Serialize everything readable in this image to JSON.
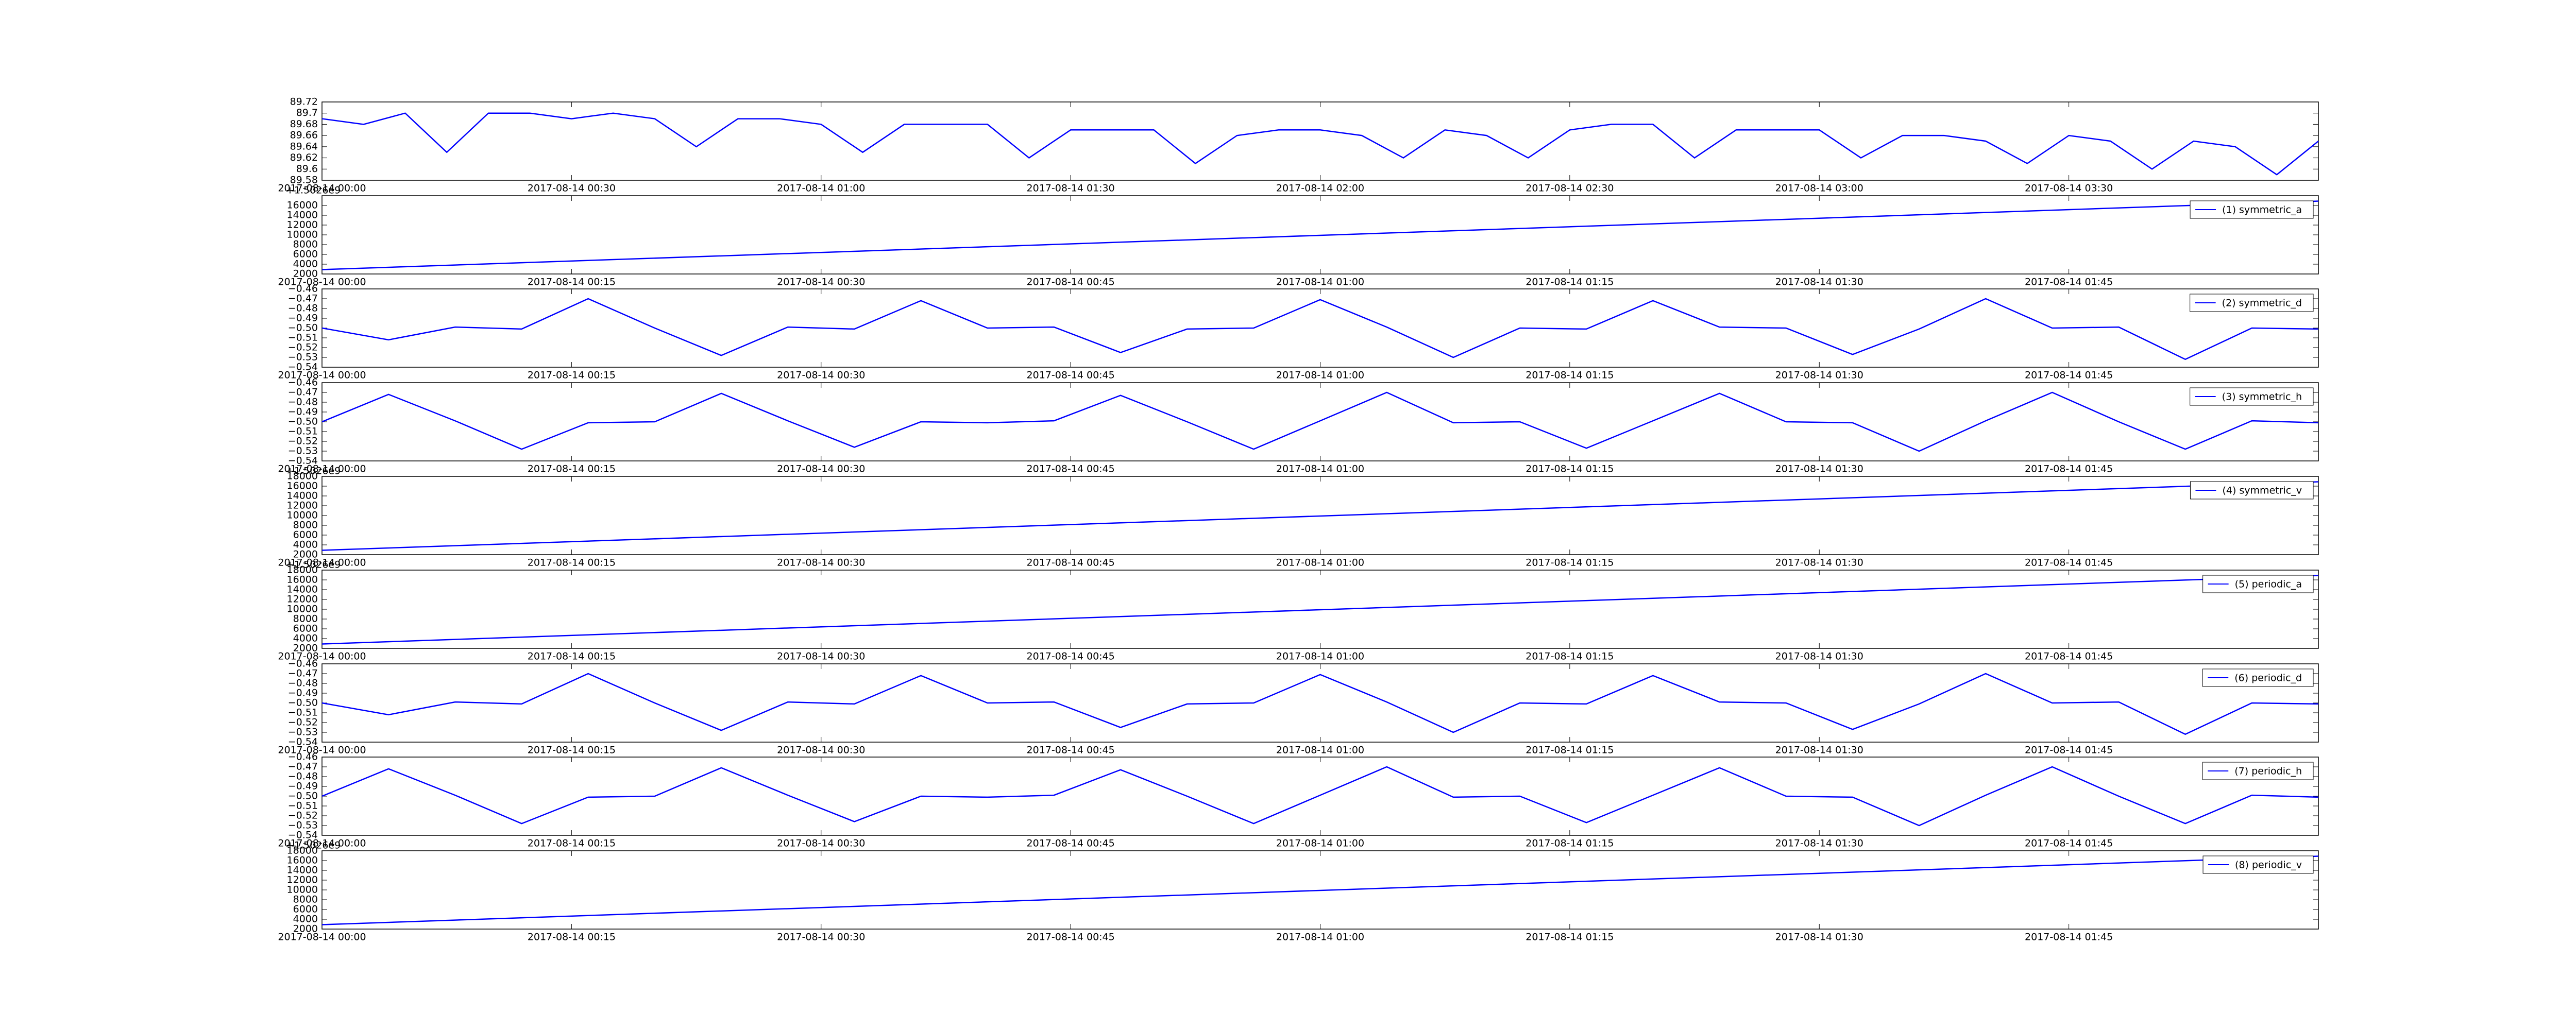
{
  "chart_data": [
    {
      "type": "line",
      "color": "#0000ff",
      "x": [
        "2017-08-14 00:00",
        "2017-08-14 00:05",
        "2017-08-14 00:10",
        "2017-08-14 00:15",
        "2017-08-14 00:20",
        "2017-08-14 00:25",
        "2017-08-14 00:30",
        "2017-08-14 00:35",
        "2017-08-14 00:40",
        "2017-08-14 00:45",
        "2017-08-14 00:50",
        "2017-08-14 00:55",
        "2017-08-14 01:00",
        "2017-08-14 01:05",
        "2017-08-14 01:10",
        "2017-08-14 01:15",
        "2017-08-14 01:20",
        "2017-08-14 01:25",
        "2017-08-14 01:30",
        "2017-08-14 01:35",
        "2017-08-14 01:40",
        "2017-08-14 01:45",
        "2017-08-14 01:50",
        "2017-08-14 01:55",
        "2017-08-14 02:00",
        "2017-08-14 02:05",
        "2017-08-14 02:10",
        "2017-08-14 02:15",
        "2017-08-14 02:20",
        "2017-08-14 02:25",
        "2017-08-14 02:30",
        "2017-08-14 02:35",
        "2017-08-14 02:40",
        "2017-08-14 02:45",
        "2017-08-14 02:50",
        "2017-08-14 02:55",
        "2017-08-14 03:00",
        "2017-08-14 03:05",
        "2017-08-14 03:10",
        "2017-08-14 03:15",
        "2017-08-14 03:20",
        "2017-08-14 03:25",
        "2017-08-14 03:30",
        "2017-08-14 03:35",
        "2017-08-14 03:40",
        "2017-08-14 03:45",
        "2017-08-14 03:50",
        "2017-08-14 03:55",
        "2017-08-14 04:00"
      ],
      "values": [
        89.69,
        89.68,
        89.7,
        89.63,
        89.7,
        89.7,
        89.69,
        89.7,
        89.69,
        89.64,
        89.69,
        89.69,
        89.68,
        89.63,
        89.68,
        89.68,
        89.68,
        89.62,
        89.67,
        89.67,
        89.67,
        89.61,
        89.66,
        89.67,
        89.67,
        89.66,
        89.62,
        89.67,
        89.66,
        89.62,
        89.67,
        89.68,
        89.68,
        89.62,
        89.67,
        89.67,
        89.67,
        89.62,
        89.66,
        89.66,
        89.65,
        89.61,
        89.66,
        89.65,
        89.6,
        89.65,
        89.64,
        89.59,
        89.65
      ],
      "xlim": [
        "2017-08-14 00:00",
        "2017-08-14 04:00"
      ],
      "xticks": [
        "2017-08-14 00:00",
        "2017-08-14 00:30",
        "2017-08-14 01:00",
        "2017-08-14 01:30",
        "2017-08-14 02:00",
        "2017-08-14 02:30",
        "2017-08-14 03:00",
        "2017-08-14 03:30"
      ],
      "ylim": [
        89.58,
        89.72
      ],
      "yticks": [
        89.58,
        89.6,
        89.62,
        89.64,
        89.66,
        89.68,
        89.7,
        89.72
      ]
    },
    {
      "type": "line",
      "offset_text": "+1.5026e9",
      "legend": "upper right",
      "x": [
        "2017-08-14 00:00",
        "2017-08-14 02:00"
      ],
      "series": [
        {
          "name": "(1) symmetric_a",
          "color": "#0000ff",
          "values": [
            2900,
            16900
          ]
        }
      ],
      "xlim": [
        "2017-08-14 00:00",
        "2017-08-14 02:00"
      ],
      "xticks": [
        "2017-08-14 00:00",
        "2017-08-14 00:15",
        "2017-08-14 00:30",
        "2017-08-14 00:45",
        "2017-08-14 01:00",
        "2017-08-14 01:15",
        "2017-08-14 01:30",
        "2017-08-14 01:45"
      ],
      "ylim": [
        2000,
        18000
      ],
      "yticks": [
        2000,
        4000,
        6000,
        8000,
        10000,
        12000,
        14000,
        16000
      ]
    },
    {
      "type": "line",
      "legend": "upper right",
      "x": [
        "2017-08-14 00:00",
        "2017-08-14 00:04",
        "2017-08-14 00:08",
        "2017-08-14 00:12",
        "2017-08-14 00:16",
        "2017-08-14 00:20",
        "2017-08-14 00:24",
        "2017-08-14 00:28",
        "2017-08-14 00:32",
        "2017-08-14 00:36",
        "2017-08-14 00:40",
        "2017-08-14 00:44",
        "2017-08-14 00:48",
        "2017-08-14 00:52",
        "2017-08-14 00:56",
        "2017-08-14 01:00",
        "2017-08-14 01:04",
        "2017-08-14 01:08",
        "2017-08-14 01:12",
        "2017-08-14 01:16",
        "2017-08-14 01:20",
        "2017-08-14 01:24",
        "2017-08-14 01:28",
        "2017-08-14 01:32",
        "2017-08-14 01:36",
        "2017-08-14 01:40",
        "2017-08-14 01:44",
        "2017-08-14 01:48",
        "2017-08-14 01:52",
        "2017-08-14 01:56",
        "2017-08-14 02:00"
      ],
      "series": [
        {
          "name": "(2) symmetric_d",
          "color": "#0000ff",
          "values": [
            -0.5,
            -0.512,
            -0.499,
            -0.501,
            -0.47,
            -0.5,
            -0.528,
            -0.499,
            -0.501,
            -0.472,
            -0.5,
            -0.499,
            -0.525,
            -0.501,
            -0.5,
            -0.471,
            -0.499,
            -0.53,
            -0.5,
            -0.501,
            -0.472,
            -0.499,
            -0.5,
            -0.527,
            -0.501,
            -0.47,
            -0.5,
            -0.499,
            -0.532,
            -0.5,
            -0.501
          ]
        }
      ],
      "xlim": [
        "2017-08-14 00:00",
        "2017-08-14 02:00"
      ],
      "xticks": [
        "2017-08-14 00:00",
        "2017-08-14 00:15",
        "2017-08-14 00:30",
        "2017-08-14 00:45",
        "2017-08-14 01:00",
        "2017-08-14 01:15",
        "2017-08-14 01:30",
        "2017-08-14 01:45"
      ],
      "ylim": [
        -0.54,
        -0.46
      ],
      "yticks": [
        {
          "value": -0.54,
          "label": "−0.54"
        },
        {
          "value": -0.53,
          "label": "−0.53"
        },
        {
          "value": -0.52,
          "label": "−0.52"
        },
        {
          "value": -0.51,
          "label": "−0.51"
        },
        {
          "value": -0.5,
          "label": "−0.50"
        },
        {
          "value": -0.49,
          "label": "−0.49"
        },
        {
          "value": -0.48,
          "label": "−0.48"
        },
        {
          "value": -0.47,
          "label": "−0.47"
        },
        {
          "value": -0.46,
          "label": "−0.46"
        }
      ]
    },
    {
      "type": "line",
      "legend": "upper right",
      "x": [
        "2017-08-14 00:00",
        "2017-08-14 00:04",
        "2017-08-14 00:08",
        "2017-08-14 00:12",
        "2017-08-14 00:16",
        "2017-08-14 00:20",
        "2017-08-14 00:24",
        "2017-08-14 00:28",
        "2017-08-14 00:32",
        "2017-08-14 00:36",
        "2017-08-14 00:40",
        "2017-08-14 00:44",
        "2017-08-14 00:48",
        "2017-08-14 00:52",
        "2017-08-14 00:56",
        "2017-08-14 01:00",
        "2017-08-14 01:04",
        "2017-08-14 01:08",
        "2017-08-14 01:12",
        "2017-08-14 01:16",
        "2017-08-14 01:20",
        "2017-08-14 01:24",
        "2017-08-14 01:28",
        "2017-08-14 01:32",
        "2017-08-14 01:36",
        "2017-08-14 01:40",
        "2017-08-14 01:44",
        "2017-08-14 01:48",
        "2017-08-14 01:52",
        "2017-08-14 01:56",
        "2017-08-14 02:00"
      ],
      "series": [
        {
          "name": "(3) symmetric_h",
          "color": "#0000ff",
          "values": [
            -0.5,
            -0.472,
            -0.499,
            -0.528,
            -0.501,
            -0.5,
            -0.471,
            -0.499,
            -0.526,
            -0.5,
            -0.501,
            -0.499,
            -0.473,
            -0.5,
            -0.528,
            -0.499,
            -0.47,
            -0.501,
            -0.5,
            -0.527,
            -0.499,
            -0.471,
            -0.5,
            -0.501,
            -0.53,
            -0.499,
            -0.47,
            -0.5,
            -0.528,
            -0.499,
            -0.501
          ]
        }
      ],
      "xlim": [
        "2017-08-14 00:00",
        "2017-08-14 02:00"
      ],
      "xticks": [
        "2017-08-14 00:00",
        "2017-08-14 00:15",
        "2017-08-14 00:30",
        "2017-08-14 00:45",
        "2017-08-14 01:00",
        "2017-08-14 01:15",
        "2017-08-14 01:30",
        "2017-08-14 01:45"
      ],
      "ylim": [
        -0.54,
        -0.46
      ],
      "yticks": [
        {
          "value": -0.54,
          "label": "−0.54"
        },
        {
          "value": -0.53,
          "label": "−0.53"
        },
        {
          "value": -0.52,
          "label": "−0.52"
        },
        {
          "value": -0.51,
          "label": "−0.51"
        },
        {
          "value": -0.5,
          "label": "−0.50"
        },
        {
          "value": -0.49,
          "label": "−0.49"
        },
        {
          "value": -0.48,
          "label": "−0.48"
        },
        {
          "value": -0.47,
          "label": "−0.47"
        },
        {
          "value": -0.46,
          "label": "−0.46"
        }
      ]
    },
    {
      "type": "line",
      "offset_text": "+1.5026e9",
      "legend": "upper right",
      "x": [
        "2017-08-14 00:00",
        "2017-08-14 02:00"
      ],
      "series": [
        {
          "name": "(4) symmetric_v",
          "color": "#0000ff",
          "values": [
            2900,
            16900
          ]
        }
      ],
      "xlim": [
        "2017-08-14 00:00",
        "2017-08-14 02:00"
      ],
      "xticks": [
        "2017-08-14 00:00",
        "2017-08-14 00:15",
        "2017-08-14 00:30",
        "2017-08-14 00:45",
        "2017-08-14 01:00",
        "2017-08-14 01:15",
        "2017-08-14 01:30",
        "2017-08-14 01:45"
      ],
      "ylim": [
        2000,
        18000
      ],
      "yticks": [
        2000,
        4000,
        6000,
        8000,
        10000,
        12000,
        14000,
        16000,
        18000
      ]
    },
    {
      "type": "line",
      "offset_text": "+1.5026e9",
      "legend": "upper right",
      "x": [
        "2017-08-14 00:00",
        "2017-08-14 02:00"
      ],
      "series": [
        {
          "name": "(5) periodic_a",
          "color": "#0000ff",
          "values": [
            2900,
            16900
          ]
        }
      ],
      "xlim": [
        "2017-08-14 00:00",
        "2017-08-14 02:00"
      ],
      "xticks": [
        "2017-08-14 00:00",
        "2017-08-14 00:15",
        "2017-08-14 00:30",
        "2017-08-14 00:45",
        "2017-08-14 01:00",
        "2017-08-14 01:15",
        "2017-08-14 01:30",
        "2017-08-14 01:45"
      ],
      "ylim": [
        2000,
        18000
      ],
      "yticks": [
        2000,
        4000,
        6000,
        8000,
        10000,
        12000,
        14000,
        16000,
        18000
      ]
    },
    {
      "type": "line",
      "legend": "upper right",
      "x": [
        "2017-08-14 00:00",
        "2017-08-14 00:04",
        "2017-08-14 00:08",
        "2017-08-14 00:12",
        "2017-08-14 00:16",
        "2017-08-14 00:20",
        "2017-08-14 00:24",
        "2017-08-14 00:28",
        "2017-08-14 00:32",
        "2017-08-14 00:36",
        "2017-08-14 00:40",
        "2017-08-14 00:44",
        "2017-08-14 00:48",
        "2017-08-14 00:52",
        "2017-08-14 00:56",
        "2017-08-14 01:00",
        "2017-08-14 01:04",
        "2017-08-14 01:08",
        "2017-08-14 01:12",
        "2017-08-14 01:16",
        "2017-08-14 01:20",
        "2017-08-14 01:24",
        "2017-08-14 01:28",
        "2017-08-14 01:32",
        "2017-08-14 01:36",
        "2017-08-14 01:40",
        "2017-08-14 01:44",
        "2017-08-14 01:48",
        "2017-08-14 01:52",
        "2017-08-14 01:56",
        "2017-08-14 02:00"
      ],
      "series": [
        {
          "name": "(6) periodic_d",
          "color": "#0000ff",
          "values": [
            -0.5,
            -0.512,
            -0.499,
            -0.501,
            -0.47,
            -0.5,
            -0.528,
            -0.499,
            -0.501,
            -0.472,
            -0.5,
            -0.499,
            -0.525,
            -0.501,
            -0.5,
            -0.471,
            -0.499,
            -0.53,
            -0.5,
            -0.501,
            -0.472,
            -0.499,
            -0.5,
            -0.527,
            -0.501,
            -0.47,
            -0.5,
            -0.499,
            -0.532,
            -0.5,
            -0.501
          ]
        }
      ],
      "xlim": [
        "2017-08-14 00:00",
        "2017-08-14 02:00"
      ],
      "xticks": [
        "2017-08-14 00:00",
        "2017-08-14 00:15",
        "2017-08-14 00:30",
        "2017-08-14 00:45",
        "2017-08-14 01:00",
        "2017-08-14 01:15",
        "2017-08-14 01:30",
        "2017-08-14 01:45"
      ],
      "ylim": [
        -0.54,
        -0.46
      ],
      "yticks": [
        {
          "value": -0.54,
          "label": "−0.54"
        },
        {
          "value": -0.53,
          "label": "−0.53"
        },
        {
          "value": -0.52,
          "label": "−0.52"
        },
        {
          "value": -0.51,
          "label": "−0.51"
        },
        {
          "value": -0.5,
          "label": "−0.50"
        },
        {
          "value": -0.49,
          "label": "−0.49"
        },
        {
          "value": -0.48,
          "label": "−0.48"
        },
        {
          "value": -0.47,
          "label": "−0.47"
        },
        {
          "value": -0.46,
          "label": "−0.46"
        }
      ]
    },
    {
      "type": "line",
      "legend": "upper right",
      "x": [
        "2017-08-14 00:00",
        "2017-08-14 00:04",
        "2017-08-14 00:08",
        "2017-08-14 00:12",
        "2017-08-14 00:16",
        "2017-08-14 00:20",
        "2017-08-14 00:24",
        "2017-08-14 00:28",
        "2017-08-14 00:32",
        "2017-08-14 00:36",
        "2017-08-14 00:40",
        "2017-08-14 00:44",
        "2017-08-14 00:48",
        "2017-08-14 00:52",
        "2017-08-14 00:56",
        "2017-08-14 01:00",
        "2017-08-14 01:04",
        "2017-08-14 01:08",
        "2017-08-14 01:12",
        "2017-08-14 01:16",
        "2017-08-14 01:20",
        "2017-08-14 01:24",
        "2017-08-14 01:28",
        "2017-08-14 01:32",
        "2017-08-14 01:36",
        "2017-08-14 01:40",
        "2017-08-14 01:44",
        "2017-08-14 01:48",
        "2017-08-14 01:52",
        "2017-08-14 01:56",
        "2017-08-14 02:00"
      ],
      "series": [
        {
          "name": "(7) periodic_h",
          "color": "#0000ff",
          "values": [
            -0.5,
            -0.472,
            -0.499,
            -0.528,
            -0.501,
            -0.5,
            -0.471,
            -0.499,
            -0.526,
            -0.5,
            -0.501,
            -0.499,
            -0.473,
            -0.5,
            -0.528,
            -0.499,
            -0.47,
            -0.501,
            -0.5,
            -0.527,
            -0.499,
            -0.471,
            -0.5,
            -0.501,
            -0.53,
            -0.499,
            -0.47,
            -0.5,
            -0.528,
            -0.499,
            -0.501
          ]
        }
      ],
      "xlim": [
        "2017-08-14 00:00",
        "2017-08-14 02:00"
      ],
      "xticks": [
        "2017-08-14 00:00",
        "2017-08-14 00:15",
        "2017-08-14 00:30",
        "2017-08-14 00:45",
        "2017-08-14 01:00",
        "2017-08-14 01:15",
        "2017-08-14 01:30",
        "2017-08-14 01:45"
      ],
      "ylim": [
        -0.54,
        -0.46
      ],
      "yticks": [
        {
          "value": -0.54,
          "label": "−0.54"
        },
        {
          "value": -0.53,
          "label": "−0.53"
        },
        {
          "value": -0.52,
          "label": "−0.52"
        },
        {
          "value": -0.51,
          "label": "−0.51"
        },
        {
          "value": -0.5,
          "label": "−0.50"
        },
        {
          "value": -0.49,
          "label": "−0.49"
        },
        {
          "value": -0.48,
          "label": "−0.48"
        },
        {
          "value": -0.47,
          "label": "−0.47"
        },
        {
          "value": -0.46,
          "label": "−0.46"
        }
      ]
    },
    {
      "type": "line",
      "offset_text": "+1.5026e9",
      "legend": "upper right",
      "x": [
        "2017-08-14 00:00",
        "2017-08-14 02:00"
      ],
      "series": [
        {
          "name": "(8) periodic_v",
          "color": "#0000ff",
          "values": [
            2900,
            16900
          ]
        }
      ],
      "xlim": [
        "2017-08-14 00:00",
        "2017-08-14 02:00"
      ],
      "xticks": [
        "2017-08-14 00:00",
        "2017-08-14 00:15",
        "2017-08-14 00:30",
        "2017-08-14 00:45",
        "2017-08-14 01:00",
        "2017-08-14 01:15",
        "2017-08-14 01:30",
        "2017-08-14 01:45"
      ],
      "ylim": [
        2000,
        18000
      ],
      "yticks": [
        2000,
        4000,
        6000,
        8000,
        10000,
        12000,
        14000,
        16000,
        18000
      ]
    }
  ]
}
